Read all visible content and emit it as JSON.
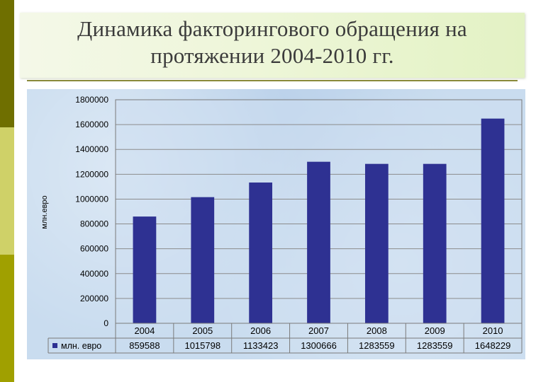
{
  "slide": {
    "title_line1": "Динамика факторингового обращения на",
    "title_line2": "протяжении 2004-2010 гг."
  },
  "chart_data": {
    "type": "bar",
    "categories": [
      "2004",
      "2005",
      "2006",
      "2007",
      "2008",
      "2009",
      "2010"
    ],
    "series": [
      {
        "name": "млн. евро",
        "values": [
          859588,
          1015798,
          1133423,
          1300666,
          1283559,
          1283559,
          1648229
        ]
      }
    ],
    "value_labels": [
      "859588",
      "1015798",
      "1133423",
      "1300666",
      "1283559",
      "1283559",
      "1648229"
    ],
    "ylabel": "млн.евро",
    "ylim": [
      0,
      1800000
    ],
    "yticks": [
      "0",
      "200000",
      "400000",
      "600000",
      "800000",
      "1000000",
      "1200000",
      "1400000",
      "1600000",
      "1800000"
    ],
    "grid": true,
    "legend": "data-table",
    "bar_color": "#2e3192"
  }
}
